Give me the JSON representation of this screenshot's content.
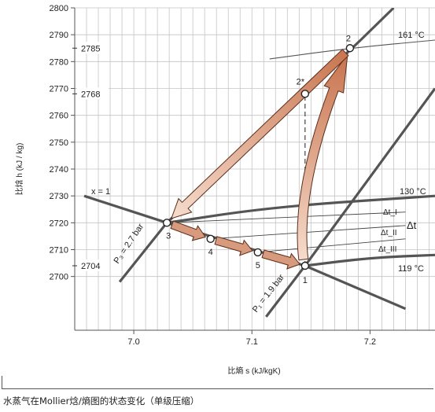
{
  "caption": "水蒸气在Mollier焓/熵图的状态变化（单级压缩）",
  "chart_data": {
    "type": "line",
    "xlabel": "比熵 s (kJ/kgK)",
    "ylabel": "比焓 h (kJ / kg)",
    "xlim": [
      6.95,
      7.255
    ],
    "ylim": [
      2680,
      2800
    ],
    "x_ticks": [
      7.0,
      7.1,
      7.2
    ],
    "x_tick_labels": [
      "7.0",
      "7.1",
      "7.2"
    ],
    "y_ticks": [
      2700,
      2710,
      2720,
      2730,
      2740,
      2750,
      2760,
      2770,
      2780,
      2790,
      2800
    ],
    "y_tick_labels": [
      "2700",
      "2710",
      "2720",
      "2730",
      "2740",
      "2750",
      "2760",
      "2770",
      "2780",
      "2790",
      "2800"
    ],
    "grid": true,
    "enthalpy_markers": [
      {
        "label": "2785",
        "h": 2785
      },
      {
        "label": "2768",
        "h": 2768
      },
      {
        "label": "2704",
        "h": 2704
      }
    ],
    "saturation_line": {
      "label": "x = 1",
      "points": [
        [
          6.958,
          2730
        ],
        [
          7.028,
          2720
        ],
        [
          7.145,
          2704
        ],
        [
          7.23,
          2688
        ]
      ]
    },
    "isobars": [
      {
        "label": "P₁ = 1.9 bar",
        "points": [
          [
            7.112,
            2685
          ],
          [
            7.145,
            2704
          ],
          [
            7.255,
            2770
          ]
        ]
      },
      {
        "label": "P₃ = 2.7 bar",
        "points": [
          [
            6.988,
            2698
          ],
          [
            7.028,
            2720
          ],
          [
            7.192,
            2788
          ],
          [
            7.22,
            2800
          ]
        ]
      }
    ],
    "isotherms": [
      {
        "label": "161 °C",
        "points": [
          [
            7.115,
            2781
          ],
          [
            7.183,
            2785
          ],
          [
            7.255,
            2788
          ]
        ]
      },
      {
        "label": "130 °C",
        "points": [
          [
            7.028,
            2720
          ],
          [
            7.12,
            2726
          ],
          [
            7.255,
            2730
          ]
        ]
      },
      {
        "label": "119 °C",
        "points": [
          [
            7.145,
            2704
          ],
          [
            7.2,
            2707
          ],
          [
            7.255,
            2708
          ]
        ]
      }
    ],
    "delta_t_lines": [
      {
        "label": "Δt_I",
        "points": [
          [
            7.028,
            2720
          ],
          [
            7.23,
            2724
          ]
        ]
      },
      {
        "label": "Δt_II",
        "points": [
          [
            7.065,
            2714
          ],
          [
            7.23,
            2719
          ]
        ]
      },
      {
        "label": "Δt_III",
        "points": [
          [
            7.105,
            2709
          ],
          [
            7.23,
            2714
          ]
        ]
      }
    ],
    "delta_t_label": "Δt",
    "states": [
      {
        "label": "1",
        "s": 7.145,
        "h": 2704
      },
      {
        "label": "2",
        "s": 7.183,
        "h": 2785
      },
      {
        "label": "2*",
        "s": 7.145,
        "h": 2768
      },
      {
        "label": "3",
        "s": 7.028,
        "h": 2720
      },
      {
        "label": "4",
        "s": 7.065,
        "h": 2714
      },
      {
        "label": "5",
        "s": 7.105,
        "h": 2709
      }
    ],
    "processes": [
      {
        "from": "1",
        "to": "2",
        "style": "arrow"
      },
      {
        "from": "2",
        "to": "3",
        "style": "arrow"
      },
      {
        "from": "3",
        "to": "4",
        "style": "arrow"
      },
      {
        "from": "4",
        "to": "5",
        "style": "arrow"
      },
      {
        "from": "5",
        "to": "1",
        "style": "arrow"
      },
      {
        "from": "1",
        "to": "2*",
        "style": "dashed"
      }
    ]
  }
}
